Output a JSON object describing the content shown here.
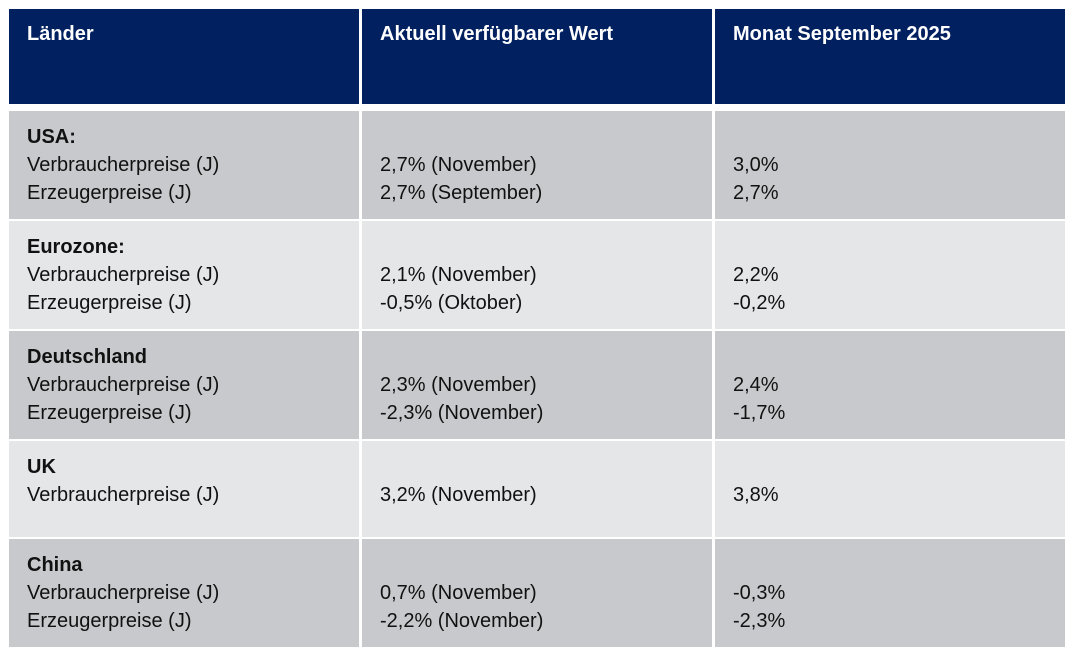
{
  "table": {
    "header": [
      "Länder",
      "Aktuell verfügbarer Wert",
      "Monat September 2025"
    ],
    "groups": [
      {
        "name": "USA:",
        "rows": [
          [
            "Verbraucherpreise (J)",
            "2,7% (November)",
            "3,0%"
          ],
          [
            "Erzeugerpreise (J)",
            "2,7% (September)",
            "2,7%"
          ]
        ]
      },
      {
        "name": "Eurozone:",
        "rows": [
          [
            "Verbraucherpreise (J)",
            "2,1% (November)",
            "2,2%"
          ],
          [
            "Erzeugerpreise (J)",
            "-0,5% (Oktober)",
            "-0,2%"
          ]
        ]
      },
      {
        "name": "Deutschland",
        "rows": [
          [
            "Verbraucherpreise (J)",
            "2,3% (November)",
            "2,4%"
          ],
          [
            "Erzeugerpreise (J)",
            "-2,3% (November)",
            "-1,7%"
          ]
        ]
      },
      {
        "name": "UK",
        "rows": [
          [
            "Verbraucherpreise (J)",
            "3,2% (November)",
            "3,8%"
          ]
        ]
      },
      {
        "name": "China",
        "rows": [
          [
            "Verbraucherpreise (J)",
            "0,7% (November)",
            "-0,3%"
          ],
          [
            "Erzeugerpreise (J)",
            "-2,2% (November)",
            "-2,3%"
          ]
        ]
      }
    ]
  }
}
